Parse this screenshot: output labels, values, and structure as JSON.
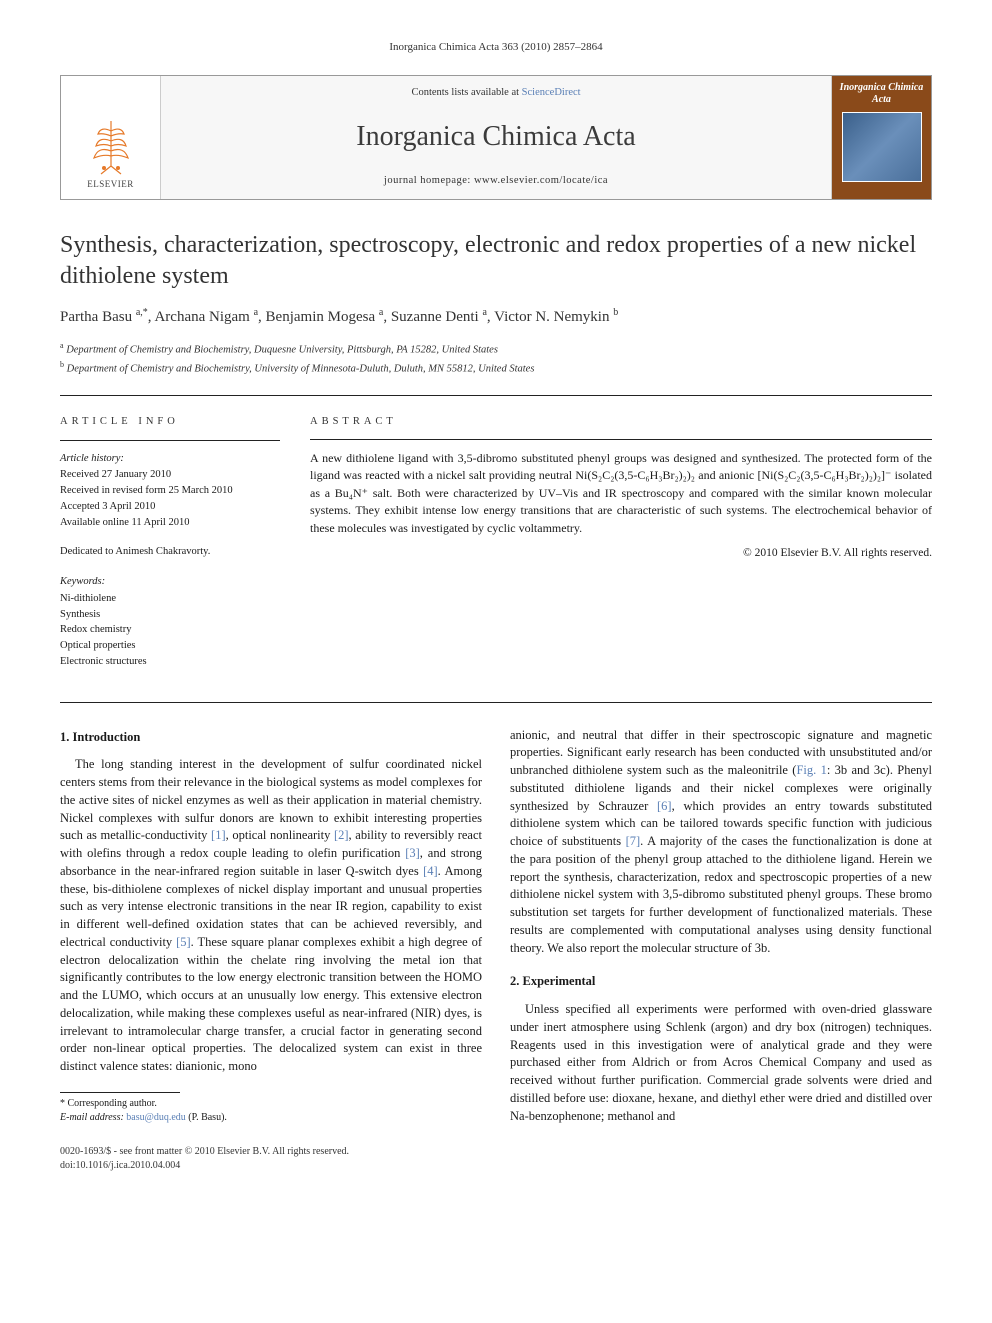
{
  "running_head": "Inorganica Chimica Acta 363 (2010) 2857–2864",
  "masthead": {
    "publisher_label": "ELSEVIER",
    "contents_prefix": "Contents lists available at ",
    "contents_link": "ScienceDirect",
    "journal_name": "Inorganica Chimica Acta",
    "homepage_prefix": "journal homepage: ",
    "homepage_url": "www.elsevier.com/locate/ica",
    "cover_title": "Inorganica Chimica Acta"
  },
  "article": {
    "title": "Synthesis, characterization, spectroscopy, electronic and redox properties of a new nickel dithiolene system",
    "authors_html": "Partha Basu <sup>a,*</sup>, Archana Nigam <sup>a</sup>, Benjamin Mogesa <sup>a</sup>, Suzanne Denti <sup>a</sup>, Victor N. Nemykin <sup>b</sup>",
    "affiliations": [
      {
        "marker": "a",
        "text": "Department of Chemistry and Biochemistry, Duquesne University, Pittsburgh, PA 15282, United States"
      },
      {
        "marker": "b",
        "text": "Department of Chemistry and Biochemistry, University of Minnesota-Duluth, Duluth, MN 55812, United States"
      }
    ]
  },
  "article_info": {
    "heading": "article info",
    "history_heading": "Article history:",
    "received": "Received 27 January 2010",
    "revised": "Received in revised form 25 March 2010",
    "accepted": "Accepted 3 April 2010",
    "online": "Available online 11 April 2010",
    "dedication": "Dedicated to Animesh Chakravorty.",
    "keywords_heading": "Keywords:",
    "keywords": [
      "Ni-dithiolene",
      "Synthesis",
      "Redox chemistry",
      "Optical properties",
      "Electronic structures"
    ]
  },
  "abstract": {
    "heading": "abstract",
    "text": "A new dithiolene ligand with 3,5-dibromo substituted phenyl groups was designed and synthesized. The protected form of the ligand was reacted with a nickel salt providing neutral Ni(S₂C₂(3,5-C₆H₃Br₂)₂)₂ and anionic [Ni(S₂C₂(3,5-C₆H₃Br₂)₂)₂]⁻ isolated as a Bu₄N⁺ salt. Both were characterized by UV–Vis and IR spectroscopy and compared with the similar known molecular systems. They exhibit intense low energy transitions that are characteristic of such systems. The electrochemical behavior of these molecules was investigated by cyclic voltammetry.",
    "copyright": "© 2010 Elsevier B.V. All rights reserved."
  },
  "sections": {
    "s1_heading": "1. Introduction",
    "s1_p1a": "The long standing interest in the development of sulfur coordinated nickel centers stems from their relevance in the biological systems as model complexes for the active sites of nickel enzymes as well as their application in material chemistry. Nickel complexes with sulfur donors are known to exhibit interesting properties such as metallic-conductivity ",
    "ref1": "[1]",
    "s1_p1b": ", optical nonlinearity ",
    "ref2": "[2]",
    "s1_p1c": ", ability to reversibly react with olefins through a redox couple leading to olefin purification ",
    "ref3": "[3]",
    "s1_p1d": ", and strong absorbance in the near-infrared region suitable in laser Q-switch dyes ",
    "ref4": "[4]",
    "s1_p1e": ". Among these, bis-dithiolene complexes of nickel display important and unusual properties such as very intense electronic transitions in the near IR region, capability to exist in different well-defined oxidation states that can be achieved reversibly, and electrical conductivity ",
    "ref5": "[5]",
    "s1_p1f": ". These square planar complexes exhibit a high degree of electron delocalization within the chelate ring involving the metal ion that significantly contributes to the low energy electronic transition between the HOMO and the LUMO, which occurs at an unusually low energy. This extensive electron delocalization, while making these complexes useful as near-infrared (NIR) dyes, is irrelevant to intramolecular charge transfer, a crucial factor in generating second order non-linear optical properties. The delocalized system can exist in three distinct valence states: dianionic, mono",
    "s1_p1g": "anionic, and neutral that differ in their spectroscopic signature and magnetic properties. Significant early research has been conducted with unsubstituted and/or unbranched dithiolene system such as the maleonitrile (",
    "fig1": "Fig. 1",
    "s1_p1h": ": 3b and 3c). Phenyl substituted dithiolene ligands and their nickel complexes were originally synthesized by Schrauzer ",
    "ref6": "[6]",
    "s1_p1i": ", which provides an entry towards substituted dithiolene system which can be tailored towards specific function with judicious choice of substituents ",
    "ref7": "[7]",
    "s1_p1j": ". A majority of the cases the functionalization is done at the para position of the phenyl group attached to the dithiolene ligand. Herein we report the synthesis, characterization, redox and spectroscopic properties of a new dithiolene nickel system with 3,5-dibromo substituted phenyl groups. These bromo substitution set targets for further development of functionalized materials. These results are complemented with computational analyses using density functional theory. We also report the molecular structure of 3b.",
    "s2_heading": "2. Experimental",
    "s2_p1": "Unless specified all experiments were performed with oven-dried glassware under inert atmosphere using Schlenk (argon) and dry box (nitrogen) techniques. Reagents used in this investigation were of analytical grade and they were purchased either from Aldrich or from Acros Chemical Company and used as received without further purification. Commercial grade solvents were dried and distilled before use: dioxane, hexane, and diethyl ether were dried and distilled over Na-benzophenone; methanol and"
  },
  "footnotes": {
    "corr": "* Corresponding author.",
    "email_label": "E-mail address: ",
    "email": "basu@duq.edu",
    "email_who": " (P. Basu)."
  },
  "footer": {
    "issn_line": "0020-1693/$ - see front matter © 2010 Elsevier B.V. All rights reserved.",
    "doi_line": "doi:10.1016/j.ica.2010.04.004"
  },
  "colors": {
    "link": "#5a7fb5",
    "rule": "#222222",
    "cover_bg": "#8a4a1a"
  },
  "typography": {
    "title_pt": 24,
    "journal_name_pt": 28,
    "body_pt": 12.5,
    "info_pt": 10.5,
    "footnote_pt": 10
  }
}
